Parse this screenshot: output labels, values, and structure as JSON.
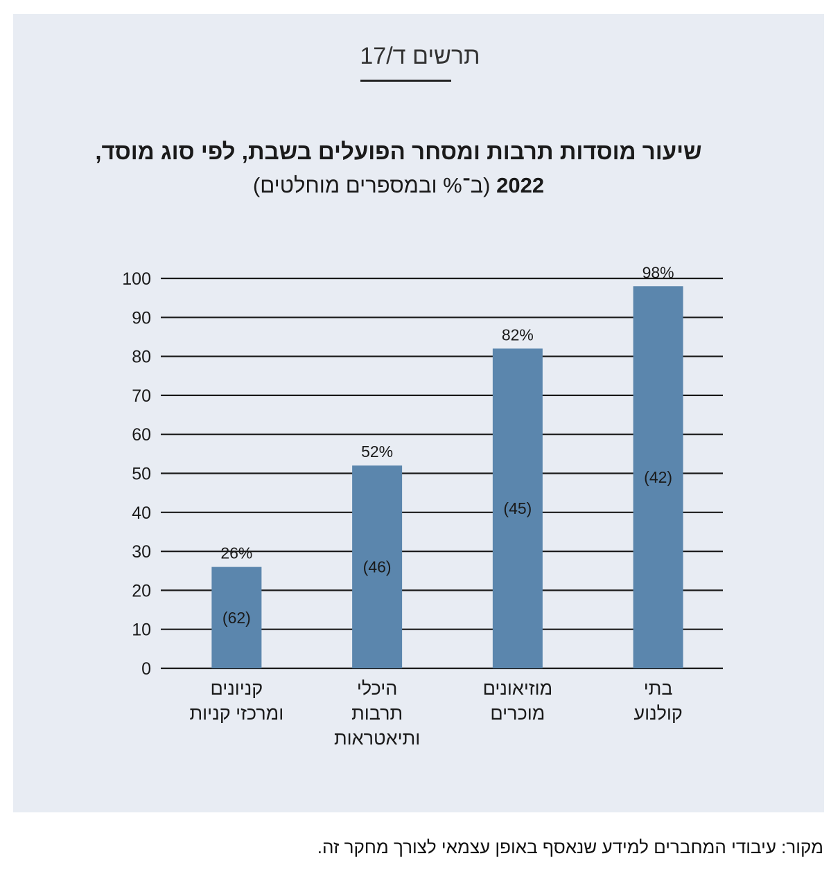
{
  "figure": {
    "label": "תרשים ד/17",
    "title_line1": "שיעור מוסדות תרבות ומסחר הפועלים בשבת, לפי סוג מוסד,",
    "title_year": "2022",
    "title_units": "(ב־% ובמספרים מוחלטים)"
  },
  "source": "מקור: עיבודי המחברים למידע שנאסף באופן עצמאי לצורך מחקר זה.",
  "colors": {
    "background": "#e8ecf3",
    "bar": "#5b86ad",
    "gridline": "#1a1a1a"
  },
  "chart_data": {
    "type": "bar",
    "categories": [
      [
        "קניונים",
        "ומרכזי קניות"
      ],
      [
        "היכלי",
        "תרבות",
        "ותיאטראות"
      ],
      [
        "מוזיאונים",
        "מוכרים"
      ],
      [
        "בתי",
        "קולנוע"
      ]
    ],
    "values": [
      26,
      52,
      82,
      98
    ],
    "value_labels": [
      "26%",
      "52%",
      "82%",
      "98%"
    ],
    "counts": [
      "(62)",
      "(46)",
      "(45)",
      "(42)"
    ],
    "ylim": [
      0,
      100
    ],
    "yticks": [
      0,
      10,
      20,
      30,
      40,
      50,
      60,
      70,
      80,
      90,
      100
    ],
    "grid": true,
    "xlabel": "",
    "ylabel": ""
  }
}
